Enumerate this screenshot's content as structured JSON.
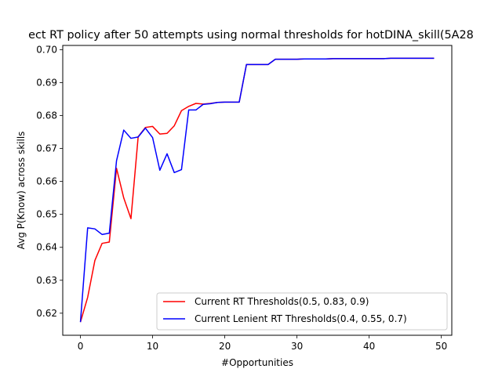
{
  "chart_data": {
    "type": "line",
    "title": "ect RT policy after 50 attempts using normal thresholds for hotDINA_skill(5A28",
    "xlabel": "#Opportunities",
    "ylabel": "Avg P(Know) across skills",
    "xlim": [
      -2.45,
      51.45
    ],
    "ylim": [
      0.6133,
      0.7013
    ],
    "xticks": [
      0,
      10,
      20,
      30,
      40,
      50
    ],
    "xtick_labels": [
      "0",
      "10",
      "20",
      "30",
      "40",
      "50"
    ],
    "yticks": [
      0.62,
      0.63,
      0.64,
      0.65,
      0.66,
      0.67,
      0.68,
      0.69,
      0.7
    ],
    "ytick_labels": [
      "0.62",
      "0.63",
      "0.64",
      "0.65",
      "0.66",
      "0.67",
      "0.68",
      "0.69",
      "0.70"
    ],
    "grid": false,
    "legend_position": "lower-right",
    "x": [
      0,
      1,
      2,
      3,
      4,
      5,
      6,
      7,
      8,
      9,
      10,
      11,
      12,
      13,
      14,
      15,
      16,
      17,
      18,
      19,
      20,
      21,
      22,
      23,
      24,
      25,
      26,
      27,
      28,
      29,
      30,
      31,
      32,
      33,
      34,
      35,
      36,
      37,
      38,
      39,
      40,
      41,
      42,
      43,
      44,
      45,
      46,
      47,
      48,
      49
    ],
    "series": [
      {
        "name": "Current RT Thresholds(0.5, 0.83, 0.9)",
        "color": "#ff0000",
        "values": [
          0.6173,
          0.6248,
          0.636,
          0.6412,
          0.6416,
          0.664,
          0.655,
          0.6487,
          0.6736,
          0.6764,
          0.6767,
          0.6744,
          0.6746,
          0.6769,
          0.6815,
          0.6828,
          0.6837,
          0.6835,
          0.6837,
          0.684,
          0.6841,
          0.6841,
          0.6841,
          0.6955,
          0.6955,
          0.6955,
          0.6955,
          0.6971,
          0.6971,
          0.6971,
          0.6971,
          0.6972,
          0.6972,
          0.6972,
          0.6972,
          0.6973,
          0.6973,
          0.6973,
          0.6973,
          0.6973,
          0.6973,
          0.6973,
          0.6973,
          0.6974,
          0.6974,
          0.6974,
          0.6974,
          0.6974,
          0.6974,
          0.6974
        ]
      },
      {
        "name": "Current Lenient RT Thresholds(0.4, 0.55, 0.7)",
        "color": "#0000ff",
        "values": [
          0.6173,
          0.6459,
          0.6456,
          0.6439,
          0.6443,
          0.6663,
          0.6756,
          0.6731,
          0.6735,
          0.6762,
          0.6733,
          0.6634,
          0.6684,
          0.6627,
          0.6636,
          0.6817,
          0.6817,
          0.6834,
          0.6836,
          0.684,
          0.6841,
          0.6841,
          0.6841,
          0.6955,
          0.6955,
          0.6955,
          0.6955,
          0.6971,
          0.6971,
          0.6971,
          0.6971,
          0.6972,
          0.6972,
          0.6972,
          0.6972,
          0.6973,
          0.6973,
          0.6973,
          0.6973,
          0.6973,
          0.6973,
          0.6973,
          0.6973,
          0.6974,
          0.6974,
          0.6974,
          0.6974,
          0.6974,
          0.6974,
          0.6974
        ]
      }
    ]
  }
}
